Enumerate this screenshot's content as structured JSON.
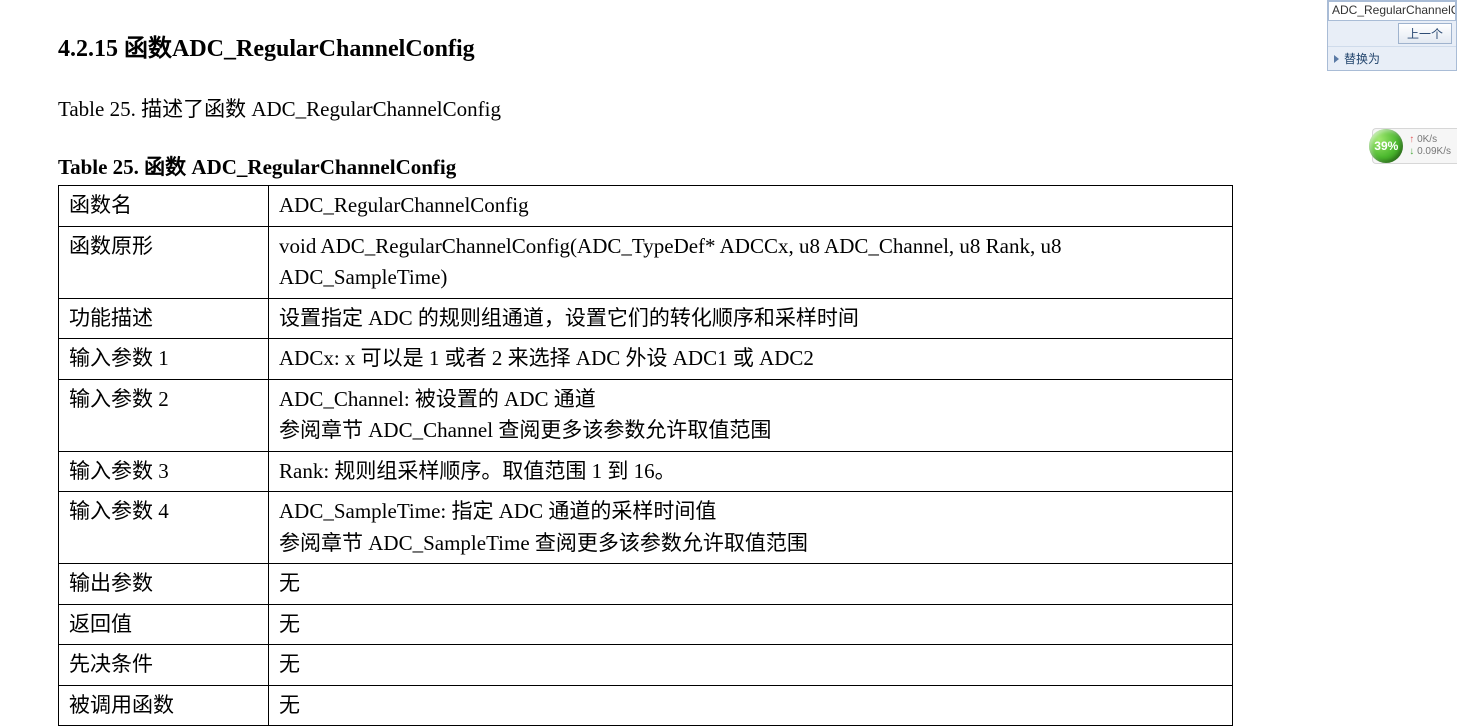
{
  "heading": "4.2.15  函数ADC_RegularChannelConfig",
  "caption_ref": "Table 25.  描述了函数 ADC_RegularChannelConfig",
  "table_caption": "Table 25.  函数 ADC_RegularChannelConfig",
  "rows": [
    {
      "label": "函数名",
      "value": "ADC_RegularChannelConfig"
    },
    {
      "label": "函数原形",
      "value": "void ADC_RegularChannelConfig(ADC_TypeDef* ADCCx, u8 ADC_Channel, u8 Rank, u8 ADC_SampleTime)"
    },
    {
      "label": "功能描述",
      "value": "设置指定 ADC 的规则组通道，设置它们的转化顺序和采样时间"
    },
    {
      "label": "输入参数 1",
      "value": "ADCx:  x 可以是 1 或者 2 来选择 ADC 外设 ADC1 或 ADC2"
    },
    {
      "label": "输入参数 2",
      "value": "ADC_Channel:  被设置的 ADC 通道\n参阅章节 ADC_Channel 查阅更多该参数允许取值范围"
    },
    {
      "label": "输入参数 3",
      "value": "Rank:  规则组采样顺序。取值范围 1 到 16。"
    },
    {
      "label": "输入参数 4",
      "value": "ADC_SampleTime:  指定 ADC 通道的采样时间值\n参阅章节 ADC_SampleTime 查阅更多该参数允许取值范围"
    },
    {
      "label": "输出参数",
      "value": "无"
    },
    {
      "label": "返回值",
      "value": "无"
    },
    {
      "label": "先决条件",
      "value": "无"
    },
    {
      "label": "被调用函数",
      "value": "无"
    }
  ],
  "find_panel": {
    "input_value": "ADC_RegularChannelC",
    "prev_label": "上一个",
    "replace_label": "替换为"
  },
  "net_widget": {
    "percent": "39%",
    "up": "0K/s",
    "down": "0.09K/s"
  }
}
